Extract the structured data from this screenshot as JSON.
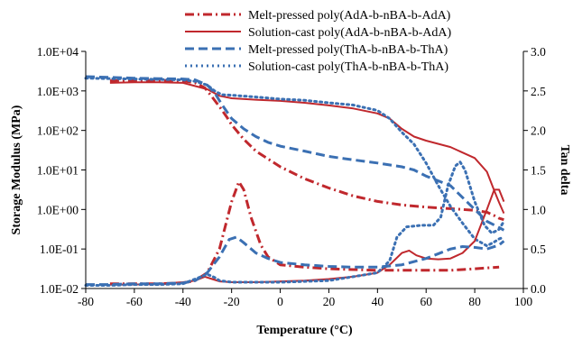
{
  "chart_data": {
    "type": "line",
    "xlabel": "Temperature (°C)",
    "ylabel": "Storage Modulus (MPa)",
    "y2label": "Tan delta",
    "x_ticks": [
      "-80",
      "-60",
      "-40",
      "-20",
      "0",
      "20",
      "40",
      "60",
      "80",
      "100"
    ],
    "y_ticks": [
      "1.0E-02",
      "1.0E-01",
      "1.0E+00",
      "1.0E+01",
      "1.0E+02",
      "1.0E+03",
      "1.0E+04"
    ],
    "y2_ticks": [
      "0.0",
      "0.5",
      "1.0",
      "1.5",
      "2.0",
      "2.5",
      "3.0"
    ],
    "xlim": [
      -80,
      100
    ],
    "ylim": [
      0.01,
      10000
    ],
    "y_scale": "log",
    "y2lim": [
      0,
      3
    ],
    "grid": false,
    "legend_position": "top-right",
    "series": [
      {
        "name": "Melt-pressed poly(AdA-b-nBA-b-AdA)",
        "axis": "left",
        "color": "#c0282d",
        "dash": "dashdot",
        "legend_style": "dashdot",
        "points": [
          [
            -70,
            1800
          ],
          [
            -60,
            1850
          ],
          [
            -50,
            1850
          ],
          [
            -40,
            1800
          ],
          [
            -35,
            1600
          ],
          [
            -31,
            1200
          ],
          [
            -28,
            700
          ],
          [
            -25,
            400
          ],
          [
            -22,
            220
          ],
          [
            -20,
            140
          ],
          [
            -15,
            60
          ],
          [
            -10,
            30
          ],
          [
            0,
            12
          ],
          [
            10,
            6
          ],
          [
            20,
            3.5
          ],
          [
            30,
            2.2
          ],
          [
            40,
            1.6
          ],
          [
            50,
            1.3
          ],
          [
            60,
            1.15
          ],
          [
            70,
            1.05
          ],
          [
            80,
            0.95
          ],
          [
            85,
            0.85
          ],
          [
            88,
            0.7
          ],
          [
            90,
            0.6
          ],
          [
            92,
            0.55
          ]
        ]
      },
      {
        "name": "Solution-cast poly(AdA-b-nBA-b-AdA)",
        "axis": "left",
        "color": "#c0282d",
        "dash": "solid",
        "legend_style": "solid",
        "points": [
          [
            -70,
            1600
          ],
          [
            -60,
            1650
          ],
          [
            -50,
            1650
          ],
          [
            -40,
            1600
          ],
          [
            -30,
            1100
          ],
          [
            -25,
            750
          ],
          [
            -20,
            650
          ],
          [
            -10,
            600
          ],
          [
            0,
            560
          ],
          [
            10,
            500
          ],
          [
            20,
            430
          ],
          [
            30,
            360
          ],
          [
            40,
            270
          ],
          [
            45,
            200
          ],
          [
            50,
            110
          ],
          [
            55,
            70
          ],
          [
            60,
            55
          ],
          [
            70,
            38
          ],
          [
            80,
            20
          ],
          [
            85,
            9
          ],
          [
            88,
            3
          ],
          [
            90,
            1.5
          ],
          [
            92,
            0.8
          ]
        ]
      },
      {
        "name": "Melt-pressed poly(ThA-b-nBA-b-ThA)",
        "axis": "left",
        "color": "#3b70b3",
        "dash": "dashed",
        "legend_style": "dashed",
        "points": [
          [
            -80,
            2300
          ],
          [
            -70,
            2200
          ],
          [
            -60,
            2100
          ],
          [
            -50,
            2050
          ],
          [
            -40,
            2000
          ],
          [
            -35,
            1900
          ],
          [
            -30,
            1400
          ],
          [
            -27,
            900
          ],
          [
            -24,
            450
          ],
          [
            -20,
            200
          ],
          [
            -15,
            110
          ],
          [
            -10,
            70
          ],
          [
            -5,
            50
          ],
          [
            0,
            40
          ],
          [
            10,
            30
          ],
          [
            20,
            22
          ],
          [
            30,
            18
          ],
          [
            40,
            15
          ],
          [
            50,
            12
          ],
          [
            55,
            10
          ],
          [
            60,
            7
          ],
          [
            70,
            4
          ],
          [
            75,
            2
          ],
          [
            80,
            1
          ],
          [
            85,
            0.5
          ],
          [
            90,
            0.35
          ],
          [
            92,
            0.3
          ]
        ]
      },
      {
        "name": "Solution-cast poly(ThA-b-nBA-b-ThA)",
        "axis": "left",
        "color": "#3b70b3",
        "dash": "dotted",
        "legend_style": "dotted",
        "points": [
          [
            -80,
            2100
          ],
          [
            -70,
            2050
          ],
          [
            -60,
            2000
          ],
          [
            -50,
            1950
          ],
          [
            -40,
            1900
          ],
          [
            -35,
            1750
          ],
          [
            -30,
            1400
          ],
          [
            -27,
            1000
          ],
          [
            -24,
            800
          ],
          [
            -20,
            780
          ],
          [
            -10,
            700
          ],
          [
            0,
            620
          ],
          [
            10,
            580
          ],
          [
            20,
            500
          ],
          [
            30,
            440
          ],
          [
            40,
            320
          ],
          [
            45,
            200
          ],
          [
            50,
            90
          ],
          [
            55,
            45
          ],
          [
            60,
            15
          ],
          [
            65,
            4
          ],
          [
            70,
            1.2
          ],
          [
            75,
            0.45
          ],
          [
            80,
            0.18
          ],
          [
            85,
            0.12
          ],
          [
            88,
            0.15
          ],
          [
            90,
            0.18
          ],
          [
            92,
            0.2
          ]
        ]
      },
      {
        "name": "Tan delta Melt-pressed AdA",
        "axis": "right",
        "color": "#c0282d",
        "dash": "dashdot",
        "points": [
          [
            -70,
            0.06
          ],
          [
            -60,
            0.06
          ],
          [
            -50,
            0.06
          ],
          [
            -40,
            0.07
          ],
          [
            -35,
            0.1
          ],
          [
            -30,
            0.2
          ],
          [
            -25,
            0.5
          ],
          [
            -20,
            1.1
          ],
          [
            -17,
            1.35
          ],
          [
            -15,
            1.25
          ],
          [
            -12,
            0.9
          ],
          [
            -8,
            0.55
          ],
          [
            -5,
            0.4
          ],
          [
            0,
            0.3
          ],
          [
            10,
            0.27
          ],
          [
            20,
            0.25
          ],
          [
            30,
            0.24
          ],
          [
            40,
            0.23
          ],
          [
            50,
            0.23
          ],
          [
            60,
            0.23
          ],
          [
            70,
            0.23
          ],
          [
            80,
            0.25
          ],
          [
            90,
            0.27
          ]
        ]
      },
      {
        "name": "Tan delta Solution-cast AdA",
        "axis": "right",
        "color": "#c0282d",
        "dash": "solid",
        "points": [
          [
            -70,
            0.05
          ],
          [
            -60,
            0.05
          ],
          [
            -50,
            0.06
          ],
          [
            -40,
            0.08
          ],
          [
            -35,
            0.1
          ],
          [
            -31,
            0.15
          ],
          [
            -28,
            0.12
          ],
          [
            -25,
            0.09
          ],
          [
            -20,
            0.08
          ],
          [
            -10,
            0.08
          ],
          [
            0,
            0.09
          ],
          [
            10,
            0.1
          ],
          [
            20,
            0.12
          ],
          [
            30,
            0.15
          ],
          [
            40,
            0.2
          ],
          [
            45,
            0.3
          ],
          [
            50,
            0.45
          ],
          [
            53,
            0.48
          ],
          [
            56,
            0.42
          ],
          [
            60,
            0.38
          ],
          [
            65,
            0.37
          ],
          [
            70,
            0.38
          ],
          [
            75,
            0.45
          ],
          [
            80,
            0.6
          ],
          [
            85,
            1.0
          ],
          [
            88,
            1.25
          ],
          [
            90,
            1.25
          ],
          [
            92,
            1.1
          ]
        ]
      },
      {
        "name": "Tan delta Melt-pressed ThA",
        "axis": "right",
        "color": "#3b70b3",
        "dash": "dashed",
        "points": [
          [
            -80,
            0.05
          ],
          [
            -70,
            0.05
          ],
          [
            -60,
            0.06
          ],
          [
            -50,
            0.06
          ],
          [
            -40,
            0.07
          ],
          [
            -35,
            0.1
          ],
          [
            -30,
            0.2
          ],
          [
            -25,
            0.4
          ],
          [
            -21,
            0.62
          ],
          [
            -18,
            0.65
          ],
          [
            -15,
            0.58
          ],
          [
            -10,
            0.45
          ],
          [
            -5,
            0.38
          ],
          [
            0,
            0.33
          ],
          [
            10,
            0.3
          ],
          [
            20,
            0.28
          ],
          [
            30,
            0.27
          ],
          [
            40,
            0.27
          ],
          [
            50,
            0.3
          ],
          [
            60,
            0.38
          ],
          [
            70,
            0.5
          ],
          [
            75,
            0.53
          ],
          [
            80,
            0.52
          ],
          [
            85,
            0.5
          ],
          [
            90,
            0.55
          ],
          [
            92,
            0.6
          ]
        ]
      },
      {
        "name": "Tan delta Solution-cast ThA",
        "axis": "right",
        "color": "#3b70b3",
        "dash": "dotted",
        "points": [
          [
            -80,
            0.04
          ],
          [
            -70,
            0.04
          ],
          [
            -60,
            0.05
          ],
          [
            -50,
            0.05
          ],
          [
            -40,
            0.06
          ],
          [
            -35,
            0.12
          ],
          [
            -30,
            0.18
          ],
          [
            -27,
            0.14
          ],
          [
            -25,
            0.1
          ],
          [
            -20,
            0.08
          ],
          [
            -10,
            0.08
          ],
          [
            0,
            0.08
          ],
          [
            10,
            0.09
          ],
          [
            20,
            0.1
          ],
          [
            30,
            0.15
          ],
          [
            40,
            0.2
          ],
          [
            45,
            0.35
          ],
          [
            48,
            0.65
          ],
          [
            52,
            0.78
          ],
          [
            58,
            0.8
          ],
          [
            63,
            0.8
          ],
          [
            66,
            0.9
          ],
          [
            69,
            1.3
          ],
          [
            72,
            1.55
          ],
          [
            74,
            1.6
          ],
          [
            76,
            1.5
          ],
          [
            80,
            1.1
          ],
          [
            84,
            0.8
          ],
          [
            87,
            0.7
          ],
          [
            90,
            0.75
          ],
          [
            92,
            0.85
          ]
        ]
      }
    ]
  }
}
